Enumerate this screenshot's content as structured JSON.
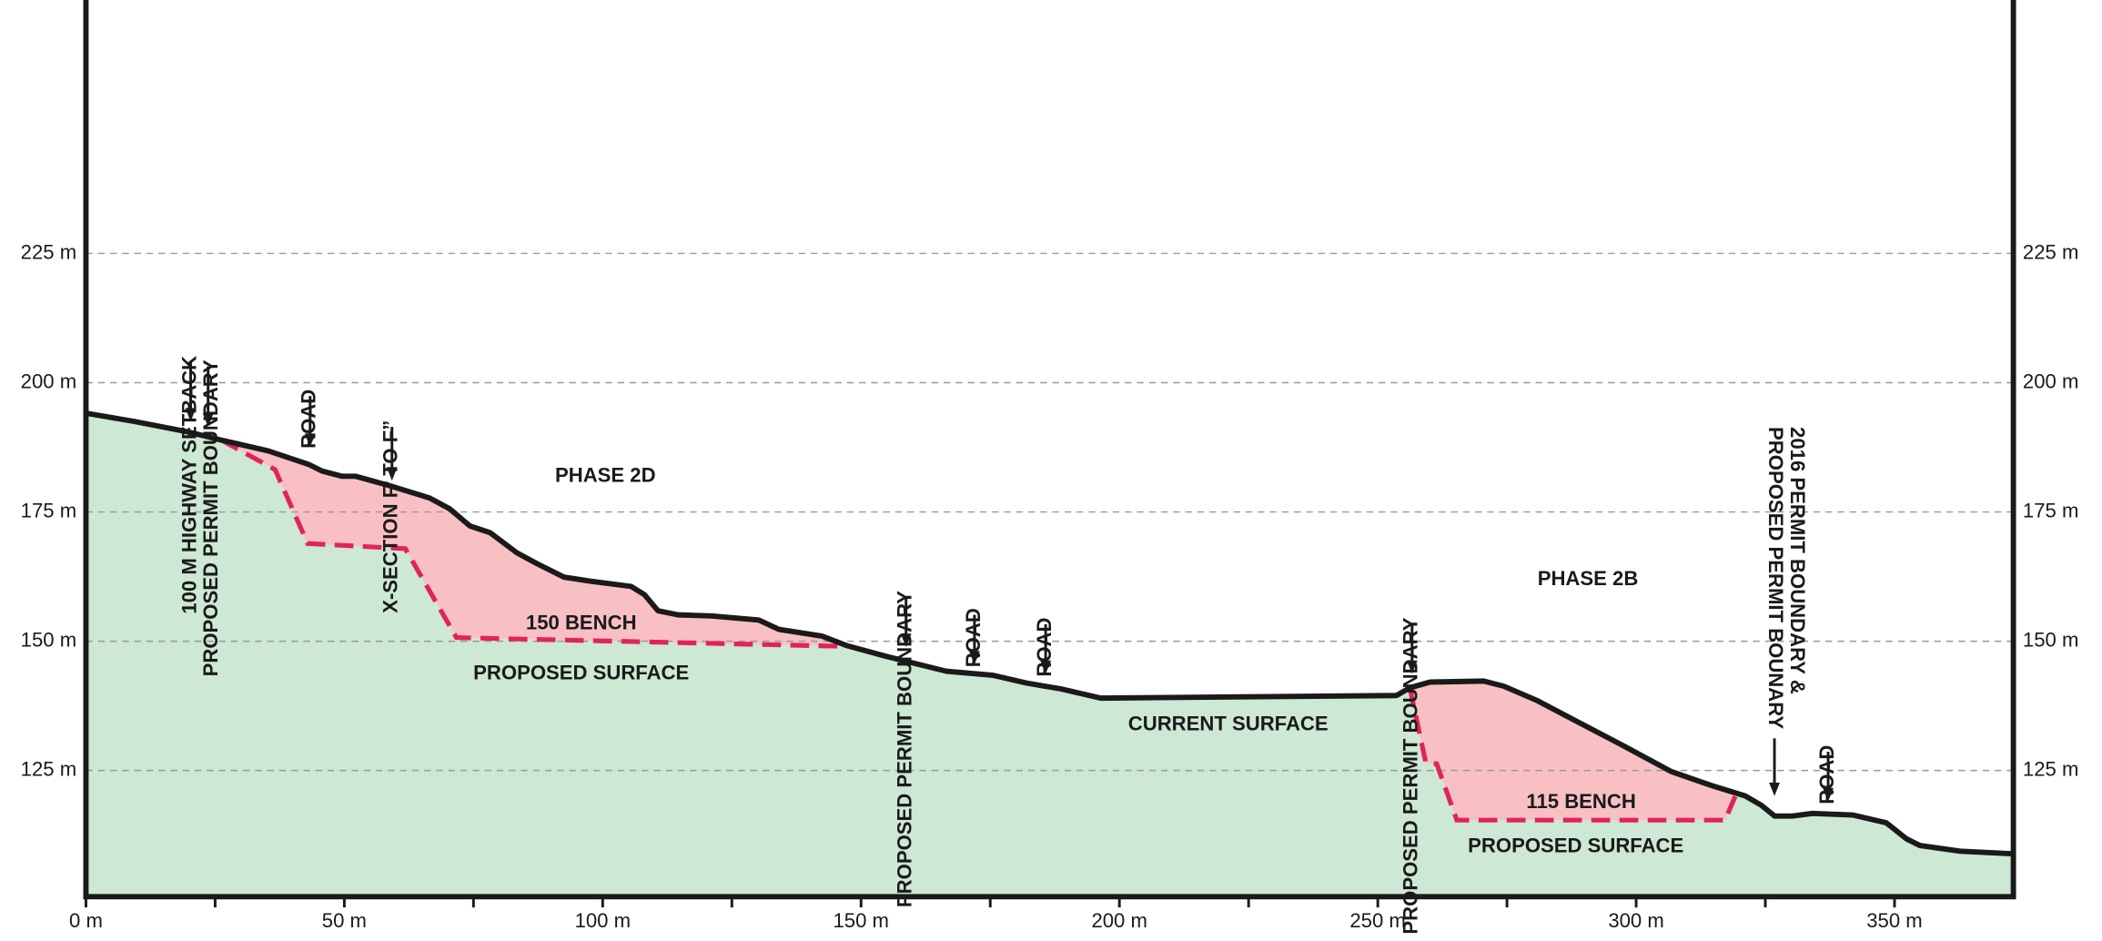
{
  "chart_data": {
    "type": "profile",
    "xlim": [
      0,
      373
    ],
    "ylim": [
      100.6,
      274
    ],
    "xticks": [
      {
        "value": 0,
        "label": "0 m"
      },
      {
        "value": 50,
        "label": "50 m"
      },
      {
        "value": 100,
        "label": "100 m"
      },
      {
        "value": 150,
        "label": "150 m"
      },
      {
        "value": 200,
        "label": "200 m"
      },
      {
        "value": 250,
        "label": "250 m"
      },
      {
        "value": 300,
        "label": "300 m"
      },
      {
        "value": 350,
        "label": "350 m"
      }
    ],
    "xminorticks": [
      25,
      75,
      125,
      175,
      225,
      275,
      325
    ],
    "yticks": [
      {
        "value": 125,
        "label": "125 m"
      },
      {
        "value": 150,
        "label": "150 m"
      },
      {
        "value": 175,
        "label": "175 m"
      },
      {
        "value": 200,
        "label": "200 m"
      },
      {
        "value": 225,
        "label": "225 m"
      }
    ],
    "grid": true,
    "colors": {
      "ground": "#cde8d4",
      "cut": "#f9c0c4",
      "proposed": "#e0245a",
      "surface": "#1a1a1a"
    },
    "current_surface": {
      "x": [
        0,
        9.4,
        19.7,
        26.2,
        35.3,
        43.1,
        45.7,
        49.6,
        52.2,
        58.7,
        66.5,
        70.4,
        74.3,
        78.2,
        83.4,
        87.3,
        92.5,
        97.7,
        105.5,
        108.1,
        110.7,
        114.6,
        121.1,
        130.2,
        134.1,
        142.4,
        147.1,
        154.8,
        166.5,
        175.6,
        182.1,
        188.6,
        196.4,
        253.6,
        256.2,
        260.1,
        270.5,
        274.4,
        280.9,
        288.7,
        297.7,
        306.8,
        314.6,
        321.1,
        324.2,
        326.8,
        330.2,
        334.1,
        341.9,
        348.4,
        352.3,
        354.9,
        362.7,
        373
      ],
      "values": [
        194.1,
        192.5,
        190.5,
        188.9,
        186.8,
        184.2,
        182.9,
        181.9,
        181.9,
        180.1,
        177.7,
        175.6,
        172.3,
        171.0,
        167.1,
        165.0,
        162.4,
        161.6,
        160.6,
        159.0,
        155.9,
        155.1,
        154.9,
        154.1,
        152.3,
        151.0,
        149.2,
        147.1,
        144.2,
        143.4,
        141.9,
        140.8,
        139.0,
        139.5,
        141.0,
        142.1,
        142.3,
        141.3,
        138.5,
        134.4,
        129.7,
        124.8,
        122.1,
        120.1,
        118.3,
        116.2,
        116.2,
        116.7,
        116.4,
        114.9,
        111.8,
        110.5,
        109.4,
        108.9
      ]
    },
    "proposed_surfaces": [
      {
        "x": [
          26.2,
          36.6,
          42.9,
          61.8,
          71.7,
          147.1
        ],
        "values": [
          188.9,
          183.2,
          168.9,
          167.9,
          150.7,
          149.0
        ]
      },
      {
        "x": [
          256.2,
          259.3,
          261.4,
          265.3,
          317.2,
          319.3
        ],
        "values": [
          141.0,
          126.5,
          126.3,
          115.4,
          115.4,
          120.3
        ]
      }
    ],
    "labels": [
      "PHASE 2D",
      "150 BENCH",
      "PROPOSED SURFACE",
      "CURRENT SURFACE",
      "PHASE 2B",
      "115 BENCH",
      "PROPOSED SURFACE"
    ],
    "annotations": [
      "100 M HIGHWAY SETBACK",
      "PROPOSED PERMIT BOUNDARY",
      "ROAD",
      "X-SECTION F’ TO F”",
      "PROPOSED PERMIT BOUNDARY",
      "ROAD",
      "ROAD",
      "PROPOSED PERMIT BOUNDARY",
      "2016 PERMIT BOUNDARY &",
      "PROPOSED PERMIT BOUNARY",
      "ROAD"
    ]
  }
}
